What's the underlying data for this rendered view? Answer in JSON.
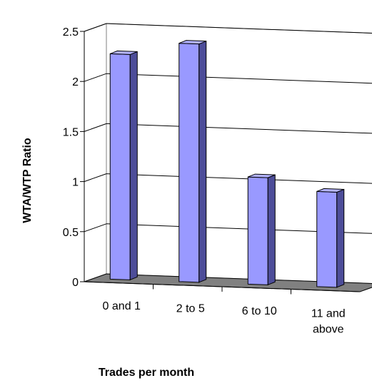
{
  "chart_data": {
    "type": "bar",
    "categories": [
      "0 and 1",
      "2 to 5",
      "6 to 10",
      "11 and above"
    ],
    "category_lines": [
      [
        "0 and 1"
      ],
      [
        "2 to 5"
      ],
      [
        "6 to 10"
      ],
      [
        "11 and",
        "above"
      ]
    ],
    "values": [
      2.25,
      2.38,
      1.07,
      0.95
    ],
    "xlabel": "Trades per month",
    "ylabel": "WTA/WTP Ratio",
    "ylim": [
      0,
      2.5
    ],
    "yticks": [
      "0",
      "0.5",
      "1",
      "1.5",
      "2",
      "2.5"
    ],
    "grid": true,
    "projection": "3d-column",
    "colors": {
      "bar_front": "#9999FF",
      "bar_side": "#4D4D99",
      "bar_top": "#B3B3FF",
      "floor": "#808080",
      "grid": "#000000",
      "wall": "#FFFFFF"
    }
  }
}
